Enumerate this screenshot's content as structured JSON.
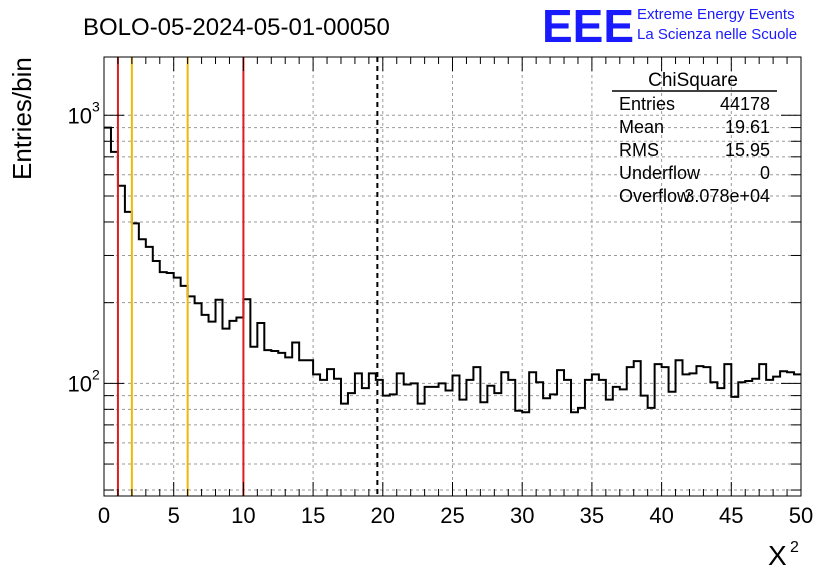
{
  "header": {
    "run_title": "BOLO-05-2024-05-01-00050",
    "logo_text": "EEE",
    "logo_line1": "Extreme Energy Events",
    "logo_line2": "La Scienza nelle Scuole",
    "brand_color": "#1a1aff"
  },
  "stats": {
    "title": "ChiSquare",
    "rows": [
      {
        "label": "Entries",
        "value": "44178"
      },
      {
        "label": "Mean",
        "value": "19.61"
      },
      {
        "label": "RMS",
        "value": "15.95"
      },
      {
        "label": "Underflow",
        "value": "0"
      },
      {
        "label": "Overflow",
        "value": "3.078e+04"
      }
    ]
  },
  "chart_data": {
    "type": "histogram",
    "title": "BOLO-05-2024-05-01-00050",
    "xlabel": "X",
    "xlabel_sup": "2",
    "ylabel": "Entries/bin",
    "xlim": [
      0,
      50
    ],
    "ylim": [
      38,
      1650
    ],
    "yscale": "log",
    "grid": true,
    "bin_width": 0.5,
    "x_ticks": [
      "0",
      "5",
      "10",
      "15",
      "20",
      "25",
      "30",
      "35",
      "40",
      "45",
      "50"
    ],
    "y_ticks": [
      {
        "value": 100,
        "label": "10",
        "sup": "2"
      },
      {
        "value": 1000,
        "label": "10",
        "sup": "3"
      }
    ],
    "values": [
      900,
      730,
      546,
      436,
      395,
      345,
      323,
      286,
      260,
      258,
      248,
      231,
      211,
      199,
      180,
      170,
      205,
      160,
      171,
      176,
      206,
      137,
      168,
      133,
      132,
      130,
      125,
      142,
      122,
      122,
      108,
      103,
      113,
      104,
      84,
      92,
      109,
      96,
      109,
      103,
      90,
      91,
      109,
      99,
      100,
      84,
      97,
      97,
      100,
      94,
      107,
      87,
      103,
      115,
      85,
      98,
      92,
      110,
      103,
      79,
      78,
      110,
      101,
      88,
      91,
      112,
      103,
      78,
      81,
      103,
      108,
      103,
      87,
      97,
      95,
      115,
      121,
      90,
      81,
      118,
      115,
      93,
      122,
      108,
      109,
      116,
      115,
      101,
      96,
      118,
      89,
      101,
      102,
      104,
      118,
      103,
      106,
      111,
      110,
      108
    ],
    "markers": [
      {
        "x": 1,
        "color": "#e41a1c",
        "style": "solid"
      },
      {
        "x": 2,
        "color": "#f2b705",
        "style": "solid"
      },
      {
        "x": 6,
        "color": "#f2b705",
        "style": "solid"
      },
      {
        "x": 10,
        "color": "#e41a1c",
        "style": "solid"
      },
      {
        "x": 19.61,
        "color": "#000000",
        "style": "dashed"
      }
    ],
    "legend_placement": "top-right"
  }
}
